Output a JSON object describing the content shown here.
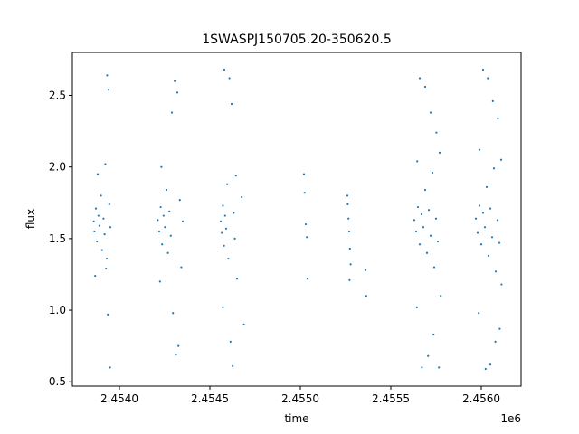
{
  "chart_data": {
    "type": "scatter",
    "title": "1SWASPJ150705.20-350620.5",
    "xlabel": "time",
    "ylabel": "flux",
    "x_offset_label": "1e6",
    "xlim": [
      2453740,
      2456220
    ],
    "ylim": [
      0.47,
      2.8
    ],
    "x_ticks": [
      2454000,
      2454500,
      2455000,
      2455500,
      2456000
    ],
    "x_tick_labels": [
      "2.4540",
      "2.4545",
      "2.4550",
      "2.4555",
      "2.4560"
    ],
    "y_ticks": [
      0.5,
      1.0,
      1.5,
      2.0,
      2.5
    ],
    "y_tick_labels": [
      "0.5",
      "1.0",
      "1.5",
      "2.0",
      "2.5"
    ],
    "grid": false,
    "marker_color": "#1f77b4",
    "series": [
      {
        "values": [
          {
            "x": 2453858,
            "y": 1.62
          },
          {
            "x": 2453862,
            "y": 1.55
          },
          {
            "x": 2453870,
            "y": 1.71
          },
          {
            "x": 2453876,
            "y": 1.48
          },
          {
            "x": 2453884,
            "y": 1.66
          },
          {
            "x": 2453890,
            "y": 1.59
          },
          {
            "x": 2453898,
            "y": 1.8
          },
          {
            "x": 2453904,
            "y": 1.42
          },
          {
            "x": 2453912,
            "y": 1.64
          },
          {
            "x": 2453918,
            "y": 1.53
          },
          {
            "x": 2453922,
            "y": 2.02
          },
          {
            "x": 2453926,
            "y": 1.29
          },
          {
            "x": 2453932,
            "y": 2.64
          },
          {
            "x": 2453936,
            "y": 0.97
          },
          {
            "x": 2453940,
            "y": 2.54
          },
          {
            "x": 2453948,
            "y": 0.6
          },
          {
            "x": 2453944,
            "y": 1.74
          },
          {
            "x": 2453930,
            "y": 1.36
          },
          {
            "x": 2453950,
            "y": 1.58
          },
          {
            "x": 2453880,
            "y": 1.95
          },
          {
            "x": 2453866,
            "y": 1.24
          },
          {
            "x": 2454212,
            "y": 1.63
          },
          {
            "x": 2454220,
            "y": 1.55
          },
          {
            "x": 2454228,
            "y": 1.72
          },
          {
            "x": 2454236,
            "y": 1.46
          },
          {
            "x": 2454244,
            "y": 1.66
          },
          {
            "x": 2454252,
            "y": 1.58
          },
          {
            "x": 2454260,
            "y": 1.84
          },
          {
            "x": 2454268,
            "y": 1.4
          },
          {
            "x": 2454276,
            "y": 1.69
          },
          {
            "x": 2454284,
            "y": 1.52
          },
          {
            "x": 2454290,
            "y": 2.38
          },
          {
            "x": 2454296,
            "y": 0.98
          },
          {
            "x": 2454306,
            "y": 2.6
          },
          {
            "x": 2454312,
            "y": 0.69
          },
          {
            "x": 2454320,
            "y": 2.52
          },
          {
            "x": 2454326,
            "y": 0.75
          },
          {
            "x": 2454334,
            "y": 1.77
          },
          {
            "x": 2454342,
            "y": 1.3
          },
          {
            "x": 2454350,
            "y": 1.62
          },
          {
            "x": 2454232,
            "y": 2.0
          },
          {
            "x": 2454224,
            "y": 1.2
          },
          {
            "x": 2454560,
            "y": 1.62
          },
          {
            "x": 2454566,
            "y": 1.54
          },
          {
            "x": 2454572,
            "y": 1.73
          },
          {
            "x": 2454578,
            "y": 1.45
          },
          {
            "x": 2454584,
            "y": 1.66
          },
          {
            "x": 2454590,
            "y": 1.57
          },
          {
            "x": 2454596,
            "y": 1.88
          },
          {
            "x": 2454602,
            "y": 1.36
          },
          {
            "x": 2454608,
            "y": 2.62
          },
          {
            "x": 2454614,
            "y": 0.78
          },
          {
            "x": 2454620,
            "y": 2.44
          },
          {
            "x": 2454626,
            "y": 0.61
          },
          {
            "x": 2454632,
            "y": 1.68
          },
          {
            "x": 2454638,
            "y": 1.5
          },
          {
            "x": 2454644,
            "y": 1.94
          },
          {
            "x": 2454650,
            "y": 1.22
          },
          {
            "x": 2454676,
            "y": 1.79
          },
          {
            "x": 2454688,
            "y": 0.9
          },
          {
            "x": 2454580,
            "y": 2.68
          },
          {
            "x": 2454572,
            "y": 1.02
          },
          {
            "x": 2455020,
            "y": 1.95
          },
          {
            "x": 2455024,
            "y": 1.82
          },
          {
            "x": 2455030,
            "y": 1.6
          },
          {
            "x": 2455036,
            "y": 1.51
          },
          {
            "x": 2455040,
            "y": 1.22
          },
          {
            "x": 2455260,
            "y": 1.8
          },
          {
            "x": 2455262,
            "y": 1.74
          },
          {
            "x": 2455266,
            "y": 1.64
          },
          {
            "x": 2455270,
            "y": 1.55
          },
          {
            "x": 2455274,
            "y": 1.43
          },
          {
            "x": 2455278,
            "y": 1.32
          },
          {
            "x": 2455272,
            "y": 1.21
          },
          {
            "x": 2455360,
            "y": 1.28
          },
          {
            "x": 2455364,
            "y": 1.1
          },
          {
            "x": 2455630,
            "y": 1.63
          },
          {
            "x": 2455640,
            "y": 1.55
          },
          {
            "x": 2455650,
            "y": 1.72
          },
          {
            "x": 2455660,
            "y": 1.46
          },
          {
            "x": 2455670,
            "y": 1.67
          },
          {
            "x": 2455680,
            "y": 1.58
          },
          {
            "x": 2455690,
            "y": 1.84
          },
          {
            "x": 2455700,
            "y": 1.4
          },
          {
            "x": 2455710,
            "y": 1.7
          },
          {
            "x": 2455720,
            "y": 1.52
          },
          {
            "x": 2455730,
            "y": 1.96
          },
          {
            "x": 2455740,
            "y": 1.3
          },
          {
            "x": 2455750,
            "y": 1.64
          },
          {
            "x": 2455760,
            "y": 1.48
          },
          {
            "x": 2455770,
            "y": 2.1
          },
          {
            "x": 2455660,
            "y": 2.62
          },
          {
            "x": 2455672,
            "y": 0.6
          },
          {
            "x": 2455690,
            "y": 2.56
          },
          {
            "x": 2455706,
            "y": 0.68
          },
          {
            "x": 2455720,
            "y": 2.38
          },
          {
            "x": 2455736,
            "y": 0.83
          },
          {
            "x": 2455752,
            "y": 2.24
          },
          {
            "x": 2455766,
            "y": 0.6
          },
          {
            "x": 2455776,
            "y": 1.1
          },
          {
            "x": 2455646,
            "y": 2.04
          },
          {
            "x": 2455644,
            "y": 1.02
          },
          {
            "x": 2455970,
            "y": 1.64
          },
          {
            "x": 2455980,
            "y": 1.54
          },
          {
            "x": 2455990,
            "y": 1.73
          },
          {
            "x": 2456000,
            "y": 1.46
          },
          {
            "x": 2456010,
            "y": 1.68
          },
          {
            "x": 2456020,
            "y": 1.58
          },
          {
            "x": 2456030,
            "y": 1.86
          },
          {
            "x": 2456040,
            "y": 1.38
          },
          {
            "x": 2456050,
            "y": 1.71
          },
          {
            "x": 2456060,
            "y": 1.51
          },
          {
            "x": 2456070,
            "y": 1.99
          },
          {
            "x": 2456080,
            "y": 1.27
          },
          {
            "x": 2456090,
            "y": 1.63
          },
          {
            "x": 2456100,
            "y": 1.47
          },
          {
            "x": 2456110,
            "y": 2.05
          },
          {
            "x": 2456010,
            "y": 2.68
          },
          {
            "x": 2456024,
            "y": 0.59
          },
          {
            "x": 2456036,
            "y": 2.62
          },
          {
            "x": 2456050,
            "y": 0.62
          },
          {
            "x": 2456064,
            "y": 2.46
          },
          {
            "x": 2456078,
            "y": 0.78
          },
          {
            "x": 2456092,
            "y": 2.34
          },
          {
            "x": 2456102,
            "y": 0.87
          },
          {
            "x": 2456112,
            "y": 1.18
          },
          {
            "x": 2455990,
            "y": 2.12
          },
          {
            "x": 2455986,
            "y": 0.98
          }
        ]
      }
    ]
  }
}
